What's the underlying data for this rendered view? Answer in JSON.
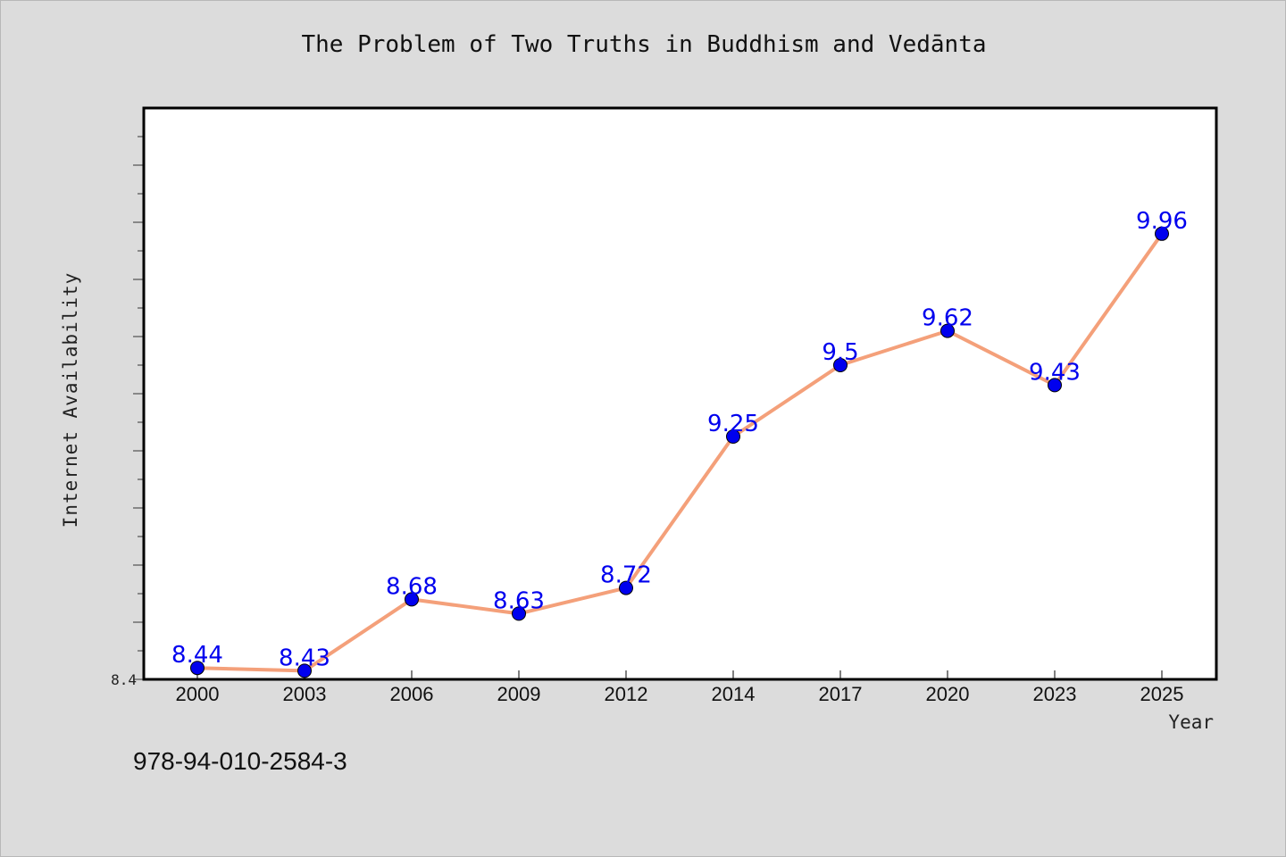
{
  "chart_data": {
    "type": "line",
    "title": "The Problem of Two Truths in Buddhism and Vedānta",
    "xlabel": "Year",
    "ylabel": "Internet Availability",
    "categories": [
      "2000",
      "2003",
      "2006",
      "2009",
      "2012",
      "2014",
      "2017",
      "2020",
      "2023",
      "2025"
    ],
    "values": [
      8.44,
      8.43,
      8.68,
      8.63,
      8.72,
      9.25,
      9.5,
      9.62,
      9.43,
      9.96
    ],
    "data_labels": [
      "8.44",
      "8.43",
      "8.68",
      "8.63",
      "8.72",
      "9.25",
      "9.5",
      "9.62",
      "9.43",
      "9.96"
    ],
    "ylim": [
      8.4,
      10.4
    ],
    "ytick_labels": [
      "8.4"
    ],
    "grid": false,
    "line_color": "#f4a07a",
    "marker_color": "#0000ee",
    "label_color": "#0000ee"
  },
  "footer": {
    "isbn": "978-94-010-2584-3"
  }
}
